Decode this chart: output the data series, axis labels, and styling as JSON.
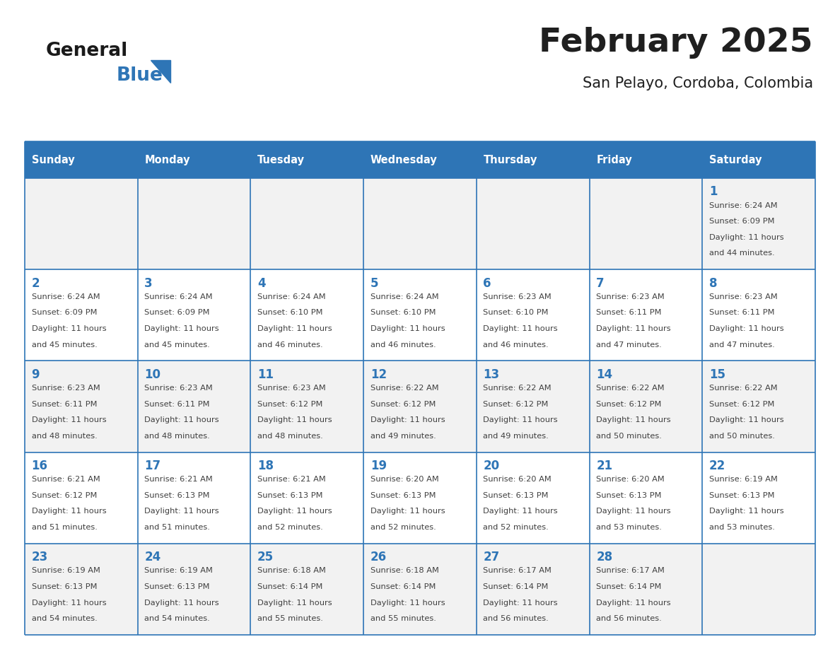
{
  "title": "February 2025",
  "subtitle": "San Pelayo, Cordoba, Colombia",
  "header_bg": "#2E75B6",
  "header_text_color": "#FFFFFF",
  "border_color": "#2E75B6",
  "day_names": [
    "Sunday",
    "Monday",
    "Tuesday",
    "Wednesday",
    "Thursday",
    "Friday",
    "Saturday"
  ],
  "title_color": "#1F1F1F",
  "subtitle_color": "#1F1F1F",
  "day_number_color": "#2E75B6",
  "text_color": "#404040",
  "logo_general_color": "#1A1A1A",
  "logo_blue_color": "#2E75B6",
  "cell_bg_odd": "#F2F2F2",
  "cell_bg_even": "#FFFFFF",
  "weeks": [
    [
      {
        "day": null,
        "sunrise": null,
        "sunset": null,
        "daylight": null
      },
      {
        "day": null,
        "sunrise": null,
        "sunset": null,
        "daylight": null
      },
      {
        "day": null,
        "sunrise": null,
        "sunset": null,
        "daylight": null
      },
      {
        "day": null,
        "sunrise": null,
        "sunset": null,
        "daylight": null
      },
      {
        "day": null,
        "sunrise": null,
        "sunset": null,
        "daylight": null
      },
      {
        "day": null,
        "sunrise": null,
        "sunset": null,
        "daylight": null
      },
      {
        "day": 1,
        "sunrise": "6:24 AM",
        "sunset": "6:09 PM",
        "daylight_line1": "Daylight: 11 hours",
        "daylight_line2": "and 44 minutes."
      }
    ],
    [
      {
        "day": 2,
        "sunrise": "6:24 AM",
        "sunset": "6:09 PM",
        "daylight_line1": "Daylight: 11 hours",
        "daylight_line2": "and 45 minutes."
      },
      {
        "day": 3,
        "sunrise": "6:24 AM",
        "sunset": "6:09 PM",
        "daylight_line1": "Daylight: 11 hours",
        "daylight_line2": "and 45 minutes."
      },
      {
        "day": 4,
        "sunrise": "6:24 AM",
        "sunset": "6:10 PM",
        "daylight_line1": "Daylight: 11 hours",
        "daylight_line2": "and 46 minutes."
      },
      {
        "day": 5,
        "sunrise": "6:24 AM",
        "sunset": "6:10 PM",
        "daylight_line1": "Daylight: 11 hours",
        "daylight_line2": "and 46 minutes."
      },
      {
        "day": 6,
        "sunrise": "6:23 AM",
        "sunset": "6:10 PM",
        "daylight_line1": "Daylight: 11 hours",
        "daylight_line2": "and 46 minutes."
      },
      {
        "day": 7,
        "sunrise": "6:23 AM",
        "sunset": "6:11 PM",
        "daylight_line1": "Daylight: 11 hours",
        "daylight_line2": "and 47 minutes."
      },
      {
        "day": 8,
        "sunrise": "6:23 AM",
        "sunset": "6:11 PM",
        "daylight_line1": "Daylight: 11 hours",
        "daylight_line2": "and 47 minutes."
      }
    ],
    [
      {
        "day": 9,
        "sunrise": "6:23 AM",
        "sunset": "6:11 PM",
        "daylight_line1": "Daylight: 11 hours",
        "daylight_line2": "and 48 minutes."
      },
      {
        "day": 10,
        "sunrise": "6:23 AM",
        "sunset": "6:11 PM",
        "daylight_line1": "Daylight: 11 hours",
        "daylight_line2": "and 48 minutes."
      },
      {
        "day": 11,
        "sunrise": "6:23 AM",
        "sunset": "6:12 PM",
        "daylight_line1": "Daylight: 11 hours",
        "daylight_line2": "and 48 minutes."
      },
      {
        "day": 12,
        "sunrise": "6:22 AM",
        "sunset": "6:12 PM",
        "daylight_line1": "Daylight: 11 hours",
        "daylight_line2": "and 49 minutes."
      },
      {
        "day": 13,
        "sunrise": "6:22 AM",
        "sunset": "6:12 PM",
        "daylight_line1": "Daylight: 11 hours",
        "daylight_line2": "and 49 minutes."
      },
      {
        "day": 14,
        "sunrise": "6:22 AM",
        "sunset": "6:12 PM",
        "daylight_line1": "Daylight: 11 hours",
        "daylight_line2": "and 50 minutes."
      },
      {
        "day": 15,
        "sunrise": "6:22 AM",
        "sunset": "6:12 PM",
        "daylight_line1": "Daylight: 11 hours",
        "daylight_line2": "and 50 minutes."
      }
    ],
    [
      {
        "day": 16,
        "sunrise": "6:21 AM",
        "sunset": "6:12 PM",
        "daylight_line1": "Daylight: 11 hours",
        "daylight_line2": "and 51 minutes."
      },
      {
        "day": 17,
        "sunrise": "6:21 AM",
        "sunset": "6:13 PM",
        "daylight_line1": "Daylight: 11 hours",
        "daylight_line2": "and 51 minutes."
      },
      {
        "day": 18,
        "sunrise": "6:21 AM",
        "sunset": "6:13 PM",
        "daylight_line1": "Daylight: 11 hours",
        "daylight_line2": "and 52 minutes."
      },
      {
        "day": 19,
        "sunrise": "6:20 AM",
        "sunset": "6:13 PM",
        "daylight_line1": "Daylight: 11 hours",
        "daylight_line2": "and 52 minutes."
      },
      {
        "day": 20,
        "sunrise": "6:20 AM",
        "sunset": "6:13 PM",
        "daylight_line1": "Daylight: 11 hours",
        "daylight_line2": "and 52 minutes."
      },
      {
        "day": 21,
        "sunrise": "6:20 AM",
        "sunset": "6:13 PM",
        "daylight_line1": "Daylight: 11 hours",
        "daylight_line2": "and 53 minutes."
      },
      {
        "day": 22,
        "sunrise": "6:19 AM",
        "sunset": "6:13 PM",
        "daylight_line1": "Daylight: 11 hours",
        "daylight_line2": "and 53 minutes."
      }
    ],
    [
      {
        "day": 23,
        "sunrise": "6:19 AM",
        "sunset": "6:13 PM",
        "daylight_line1": "Daylight: 11 hours",
        "daylight_line2": "and 54 minutes."
      },
      {
        "day": 24,
        "sunrise": "6:19 AM",
        "sunset": "6:13 PM",
        "daylight_line1": "Daylight: 11 hours",
        "daylight_line2": "and 54 minutes."
      },
      {
        "day": 25,
        "sunrise": "6:18 AM",
        "sunset": "6:14 PM",
        "daylight_line1": "Daylight: 11 hours",
        "daylight_line2": "and 55 minutes."
      },
      {
        "day": 26,
        "sunrise": "6:18 AM",
        "sunset": "6:14 PM",
        "daylight_line1": "Daylight: 11 hours",
        "daylight_line2": "and 55 minutes."
      },
      {
        "day": 27,
        "sunrise": "6:17 AM",
        "sunset": "6:14 PM",
        "daylight_line1": "Daylight: 11 hours",
        "daylight_line2": "and 56 minutes."
      },
      {
        "day": 28,
        "sunrise": "6:17 AM",
        "sunset": "6:14 PM",
        "daylight_line1": "Daylight: 11 hours",
        "daylight_line2": "and 56 minutes."
      },
      {
        "day": null,
        "sunrise": null,
        "sunset": null,
        "daylight_line1": null,
        "daylight_line2": null
      }
    ]
  ]
}
